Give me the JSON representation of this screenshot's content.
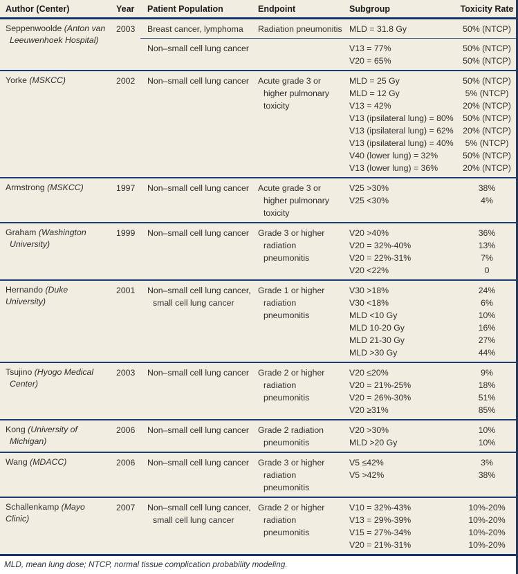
{
  "table": {
    "columns": [
      "Author (Center)",
      "Year",
      "Patient Population",
      "Endpoint",
      "Subgroup",
      "Toxicity Rate"
    ],
    "rows": [
      {
        "author_lines": [
          {
            "indent": false,
            "segments": [
              {
                "text": "Seppenwoolde ",
                "italic": false
              },
              {
                "text": "(Anton van",
                "italic": true
              }
            ]
          },
          {
            "indent": true,
            "segments": [
              {
                "text": "Leeuwenhoek Hospital)",
                "italic": true
              }
            ]
          }
        ],
        "year": "2003",
        "subrows": [
          {
            "population_lines": [
              "Breast cancer, lymphoma"
            ],
            "endpoint_lines": [
              "Radiation pneumonitis"
            ],
            "entries": [
              {
                "subgroup": "MLD = 31.8 Gy",
                "rate": "50% (NTCP)"
              }
            ]
          },
          {
            "population_lines": [
              "Non–small cell lung cancer"
            ],
            "endpoint_lines": [],
            "entries": [
              {
                "subgroup": "V13 = 77%",
                "rate": "50% (NTCP)"
              },
              {
                "subgroup": "V20 = 65%",
                "rate": "50% (NTCP)"
              }
            ]
          }
        ]
      },
      {
        "author_lines": [
          {
            "indent": false,
            "segments": [
              {
                "text": "Yorke ",
                "italic": false
              },
              {
                "text": "(MSKCC)",
                "italic": true
              }
            ]
          }
        ],
        "year": "2002",
        "subrows": [
          {
            "population_lines": [
              "Non–small cell lung cancer"
            ],
            "endpoint_lines": [
              "Acute grade 3 or",
              "higher pulmonary",
              "toxicity"
            ],
            "entries": [
              {
                "subgroup": "MLD = 25 Gy",
                "rate": "50% (NTCP)"
              },
              {
                "subgroup": "MLD = 12 Gy",
                "rate": "5% (NTCP)"
              },
              {
                "subgroup": "V13 = 42%",
                "rate": "20% (NTCP)"
              },
              {
                "subgroup": "V13 (ipsilateral lung) = 80%",
                "rate": "50% (NTCP)"
              },
              {
                "subgroup": "V13 (ipsilateral lung) = 62%",
                "rate": "20% (NTCP)"
              },
              {
                "subgroup": "V13 (ipsilateral lung) = 40%",
                "rate": "5% (NTCP)"
              },
              {
                "subgroup": "V40 (lower lung) = 32%",
                "rate": "50% (NTCP)"
              },
              {
                "subgroup": "V13 (lower lung) = 36%",
                "rate": "20% (NTCP)"
              }
            ]
          }
        ]
      },
      {
        "author_lines": [
          {
            "indent": false,
            "segments": [
              {
                "text": "Armstrong ",
                "italic": false
              },
              {
                "text": "(MSKCC)",
                "italic": true
              }
            ]
          }
        ],
        "year": "1997",
        "subrows": [
          {
            "population_lines": [
              "Non–small cell lung cancer"
            ],
            "endpoint_lines": [
              "Acute grade 3 or",
              "higher pulmonary",
              "toxicity"
            ],
            "entries": [
              {
                "subgroup": "V25 >30%",
                "rate": "38%"
              },
              {
                "subgroup": "V25 <30%",
                "rate": "4%"
              }
            ]
          }
        ]
      },
      {
        "author_lines": [
          {
            "indent": false,
            "segments": [
              {
                "text": "Graham ",
                "italic": false
              },
              {
                "text": "(Washington",
                "italic": true
              }
            ]
          },
          {
            "indent": true,
            "segments": [
              {
                "text": "University)",
                "italic": true
              }
            ]
          }
        ],
        "year": "1999",
        "subrows": [
          {
            "population_lines": [
              "Non–small cell lung cancer"
            ],
            "endpoint_lines": [
              "Grade 3 or higher",
              "radiation",
              "pneumonitis"
            ],
            "entries": [
              {
                "subgroup": "V20 >40%",
                "rate": "36%"
              },
              {
                "subgroup": "V20 = 32%-40%",
                "rate": "13%"
              },
              {
                "subgroup": "V20 = 22%-31%",
                "rate": "7%"
              },
              {
                "subgroup": "V20 <22%",
                "rate": "0"
              }
            ]
          }
        ]
      },
      {
        "author_lines": [
          {
            "indent": false,
            "segments": [
              {
                "text": "Hernando ",
                "italic": false
              },
              {
                "text": "(Duke University)",
                "italic": true
              }
            ]
          }
        ],
        "year": "2001",
        "subrows": [
          {
            "population_lines": [
              "Non–small cell lung cancer,",
              "small cell lung cancer"
            ],
            "endpoint_lines": [
              "Grade 1 or higher",
              "radiation",
              "pneumonitis"
            ],
            "entries": [
              {
                "subgroup": "V30 >18%",
                "rate": "24%"
              },
              {
                "subgroup": "V30 <18%",
                "rate": "6%"
              },
              {
                "subgroup": "MLD <10 Gy",
                "rate": "10%"
              },
              {
                "subgroup": "MLD 10-20 Gy",
                "rate": "16%"
              },
              {
                "subgroup": "MLD 21-30 Gy",
                "rate": "27%"
              },
              {
                "subgroup": "MLD >30 Gy",
                "rate": "44%"
              }
            ]
          }
        ]
      },
      {
        "author_lines": [
          {
            "indent": false,
            "segments": [
              {
                "text": "Tsujino ",
                "italic": false
              },
              {
                "text": "(Hyogo Medical",
                "italic": true
              }
            ]
          },
          {
            "indent": true,
            "segments": [
              {
                "text": "Center)",
                "italic": true
              }
            ]
          }
        ],
        "year": "2003",
        "subrows": [
          {
            "population_lines": [
              "Non–small cell lung cancer"
            ],
            "endpoint_lines": [
              "Grade 2 or higher",
              "radiation",
              "pneumonitis"
            ],
            "entries": [
              {
                "subgroup": "V20 ≤20%",
                "rate": "9%"
              },
              {
                "subgroup": "V20 = 21%-25%",
                "rate": "18%"
              },
              {
                "subgroup": "V20 = 26%-30%",
                "rate": "51%"
              },
              {
                "subgroup": "V20 ≥31%",
                "rate": "85%"
              }
            ]
          }
        ]
      },
      {
        "author_lines": [
          {
            "indent": false,
            "segments": [
              {
                "text": "Kong ",
                "italic": false
              },
              {
                "text": "(University of",
                "italic": true
              }
            ]
          },
          {
            "indent": true,
            "segments": [
              {
                "text": "Michigan)",
                "italic": true
              }
            ]
          }
        ],
        "year": "2006",
        "subrows": [
          {
            "population_lines": [
              "Non–small cell lung cancer"
            ],
            "endpoint_lines": [
              "Grade 2 radiation",
              "pneumonitis"
            ],
            "entries": [
              {
                "subgroup": "V20 >30%",
                "rate": "10%"
              },
              {
                "subgroup": "MLD >20 Gy",
                "rate": "10%"
              }
            ]
          }
        ]
      },
      {
        "author_lines": [
          {
            "indent": false,
            "segments": [
              {
                "text": "Wang ",
                "italic": false
              },
              {
                "text": "(MDACC)",
                "italic": true
              }
            ]
          }
        ],
        "year": "2006",
        "subrows": [
          {
            "population_lines": [
              "Non–small cell lung cancer"
            ],
            "endpoint_lines": [
              "Grade 3 or higher",
              "radiation",
              "pneumonitis"
            ],
            "entries": [
              {
                "subgroup": "V5 ≤42%",
                "rate": "3%"
              },
              {
                "subgroup": "V5 >42%",
                "rate": "38%"
              }
            ]
          }
        ]
      },
      {
        "author_lines": [
          {
            "indent": false,
            "segments": [
              {
                "text": "Schallenkamp ",
                "italic": false
              },
              {
                "text": "(Mayo Clinic)",
                "italic": true
              }
            ]
          }
        ],
        "year": "2007",
        "subrows": [
          {
            "population_lines": [
              "Non–small cell lung cancer,",
              "small cell lung cancer"
            ],
            "endpoint_lines": [
              "Grade 2 or higher",
              "radiation",
              "pneumonitis"
            ],
            "entries": [
              {
                "subgroup": "V10 = 32%-43%",
                "rate": "10%-20%"
              },
              {
                "subgroup": "V13 = 29%-39%",
                "rate": "10%-20%"
              },
              {
                "subgroup": "V15 = 27%-34%",
                "rate": "10%-20%"
              },
              {
                "subgroup": "V20 = 21%-31%",
                "rate": "10%-20%"
              }
            ]
          }
        ]
      }
    ]
  },
  "footnote": "MLD, mean lung dose; NTCP, normal tissue complication probability modeling.",
  "colors": {
    "table_background": "#f1ede0",
    "rule_navy": "#15356f",
    "row_rule_navy": "#1b3a73",
    "partial_divider": "#44608f",
    "right_edge": "#263a5c",
    "text": "#2e2e2e"
  }
}
